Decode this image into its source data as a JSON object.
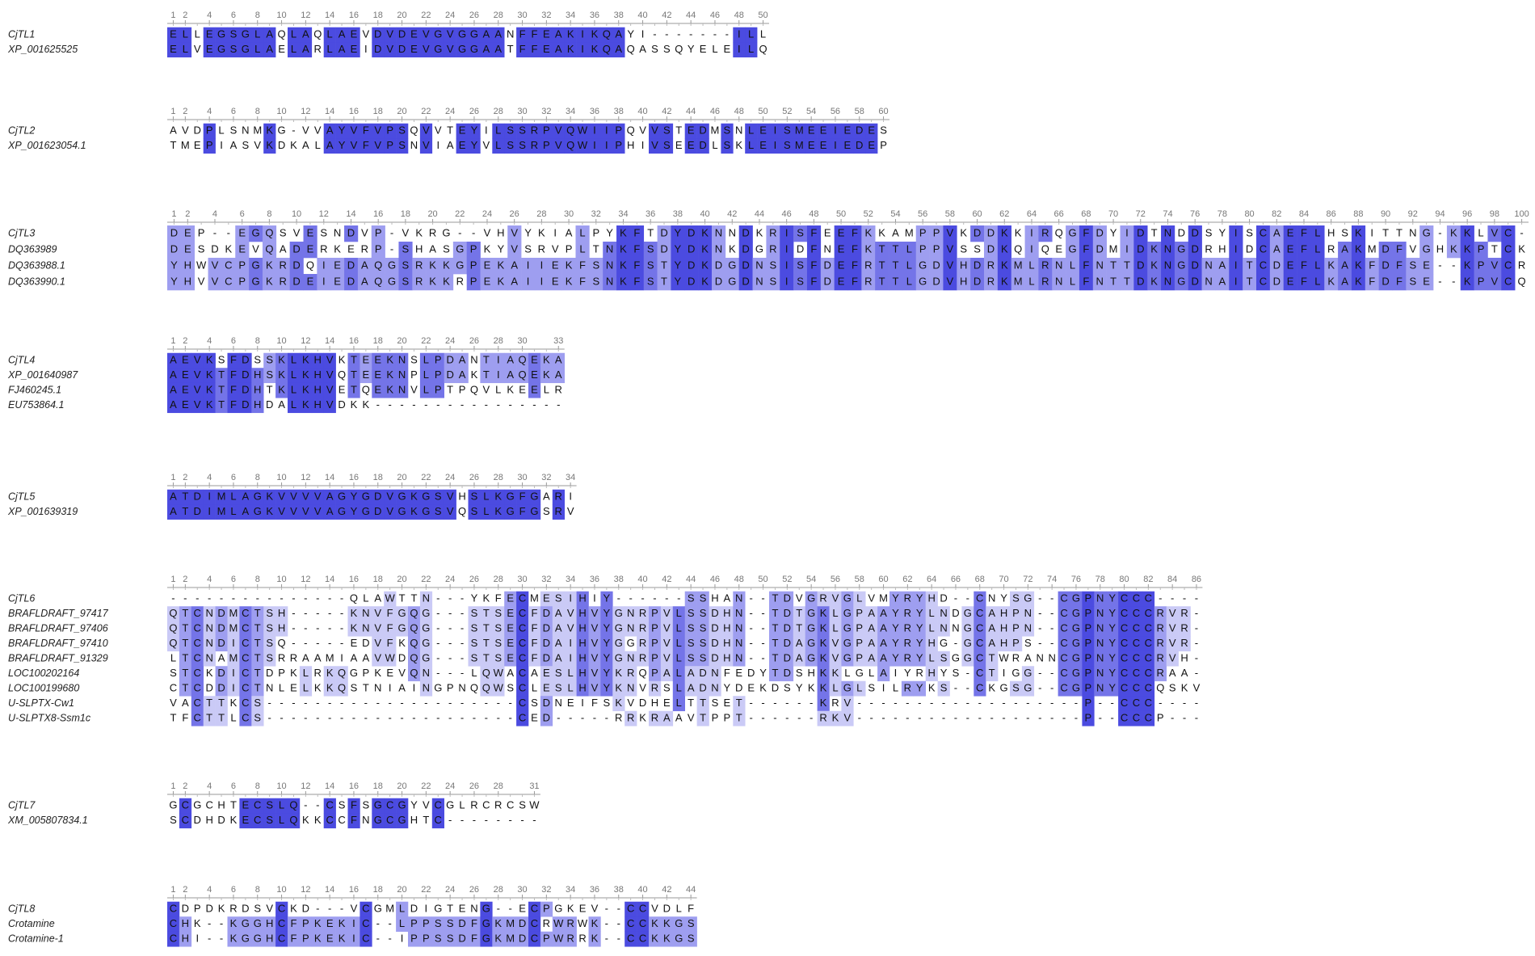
{
  "blocks": [
    {
      "ruler": [
        1,
        2,
        4,
        6,
        8,
        10,
        12,
        14,
        16,
        18,
        20,
        22,
        24,
        26,
        28,
        30,
        32,
        34,
        36,
        38,
        40,
        42,
        44,
        46,
        48,
        50
      ],
      "rows": [
        {
          "name": "CjTL1",
          "sequence": "ELLEGSGLAQLAQLAEVDVDEVGVGGAANFFEAKIKQAYI-------ILL"
        },
        {
          "name": "XP_001625525",
          "sequence": "ELVEGSGLAELARLAEIDVDEVGVGGAATFFEAKIKQAQASSQYELEILQ"
        }
      ]
    },
    {
      "ruler": [
        1,
        2,
        4,
        6,
        8,
        10,
        12,
        14,
        16,
        18,
        20,
        22,
        24,
        26,
        28,
        30,
        32,
        34,
        36,
        38,
        40,
        42,
        44,
        46,
        48,
        50,
        52,
        54,
        56,
        58,
        60
      ],
      "rows": [
        {
          "name": "CjTL2",
          "sequence": "AVDPLSNMKG-VVAYVFVPSQVVTEYILSSRPVQWIIPQVVSTEDMSNLEISMEEIEDES"
        },
        {
          "name": "XP_001623054.1",
          "sequence": "TMEPIASVKDKALAYVFVPSNVIAEYVLSSRPVQWIIPHIVSEEDLSKLEISMEEIEDEP"
        }
      ]
    },
    {
      "ruler": [
        1,
        2,
        4,
        6,
        8,
        10,
        12,
        14,
        16,
        18,
        20,
        22,
        24,
        26,
        28,
        30,
        32,
        34,
        36,
        38,
        40,
        42,
        44,
        46,
        48,
        50,
        52,
        54,
        56,
        58,
        60,
        62,
        64,
        66,
        68,
        70,
        72,
        74,
        76,
        78,
        80,
        82,
        84,
        86,
        88,
        90,
        92,
        94,
        96,
        98,
        100
      ],
      "rows": [
        {
          "name": "CjTL3",
          "sequence": "DEP--EGQSVESNDVP-VKRG--VHVYKIALPYKFTDYDKNNDKRISFEEFKKAMPPVKDDKKIRQGFDYIDTNDDSYISCAEFLHSKITTNG-KKLVC-"
        },
        {
          "name": "DQ363989",
          "sequence": "DESDKEVQADERKERP-SHASGPKYVSRVPLTNKFSDYDKNKDGRIDFNEFKTTLPPVSSDKQIQEGFDMIDKNGDRHIDCAEFLRAKMDFVGHKKPTCK"
        },
        {
          "name": "DQ363988.1",
          "sequence": "YHWVCPGKRDQIEDAQGSRKKGPEKAIIEKFSNKFSTYDKDGDNSISFDEFRTTLGDVHDRKMLRNLFNTTDKNGDNAITCDEFLKAKFDFSE--KPVCR"
        },
        {
          "name": "DQ363990.1",
          "sequence": "YHVVCPGKRDEIEDAQGSRKKRPEKAIIEKFSNKFSTYDKDGDNSISFDEFRTTLGDVHDRKMLRNLFNTTDKNGDNAITCDEFLKAKFDFSE--KPVCQ"
        }
      ]
    },
    {
      "ruler": [
        1,
        2,
        4,
        6,
        8,
        10,
        12,
        14,
        16,
        18,
        20,
        22,
        24,
        26,
        28,
        30,
        33
      ],
      "rows": [
        {
          "name": "CjTL4",
          "sequence": "AEVKSFDSSKLKHVKTEEKNSLPDANTIAQEKA"
        },
        {
          "name": "XP_001640987",
          "sequence": "AEVKTFDHSKLKHVQTEEKNPLPDAKTIAQEKA"
        },
        {
          "name": "FJ460245.1",
          "sequence": "AEVKTFDHTKLKHVETQEKNVLPTPQVLKEELR"
        },
        {
          "name": "EU753864.1",
          "sequence": "AEVKTFDHDALKHVDKK----------------"
        }
      ]
    },
    {
      "ruler": [
        1,
        2,
        4,
        6,
        8,
        10,
        12,
        14,
        16,
        18,
        20,
        22,
        24,
        26,
        28,
        30,
        32,
        34
      ],
      "rows": [
        {
          "name": "CjTL5",
          "sequence": "ATDIMLAGKVVVVAGYGDVGKGSVHSLKGFGARI"
        },
        {
          "name": "XP_001639319",
          "sequence": "ATDIMLAGKVVVVAGYGDVGKGSVQSLKGFGSRV"
        }
      ]
    },
    {
      "ruler": [
        1,
        2,
        4,
        6,
        8,
        10,
        12,
        14,
        16,
        18,
        20,
        22,
        24,
        26,
        28,
        30,
        32,
        34,
        36,
        38,
        40,
        42,
        44,
        46,
        48,
        50,
        52,
        54,
        56,
        58,
        60,
        62,
        64,
        66,
        68,
        70,
        72,
        74,
        76,
        78,
        80,
        82,
        84,
        86
      ],
      "rows": [
        {
          "name": "CjTL6",
          "sequence": "---------------QLAWTTN---YKFECMESIHIY------SSHAN--TDVGRVGLVMYRYHD--CNYSG--CGPNYCCC----"
        },
        {
          "name": "BRAFLDRAFT_97417",
          "sequence": "QTCNDMCTSH-----KNVFGQG---STSECFDAVHVYGNRPVLSSDHN--TDTGKLGPAAYRYLNDGCAHPN--CGPNYCCCRVR-"
        },
        {
          "name": "BRAFLDRAFT_97406",
          "sequence": "QTCNDMCTSH-----KNVFGQG---STSECFDAVHVYGNRPVLSSDHN--TDTGKLGPAAYRYLNNGCAHPN--CGPNYCCCRVR-"
        },
        {
          "name": "BRAFLDRAFT_97410",
          "sequence": "QTCNDICTSQ-----EDVFKQG---STSECFDAIHVYGGRPVLSSDHN--TDAGKVGPAAYRYHG-GCAHPS--CGPNYCCCRVR-"
        },
        {
          "name": "BRAFLDRAFT_91329",
          "sequence": "LTCNAMCTSRRAAMIAAVWDQG---STSECFDAIHVYGNRPVLSSDHN--TDAGKVGPAAYRYLSGGCTWRANNCGPNYCCCRVH-"
        },
        {
          "name": "LOC100202164",
          "sequence": "STCKDICTDPKLRKQGPKEVQN---LQWACAESLHVYKRQPALADNFEDYTDSHKKLGLAIYRHYS-CTIGG--CGPNYCCCRAA-"
        },
        {
          "name": "LOC100199680",
          "sequence": "CTCDDICTNLELKKQSTNIAINGPNQQWSCLESLHVYKNVRSLADNYDEKDSYKKLGLSILRYKS--CKGSG--CGPNYCCCQSKV"
        },
        {
          "name": "U-SLPTX-Cw1",
          "sequence": "VACTTKCS---------------------CSDNEIFSKVDHELTTSET------KRV-------------------P--CCC----"
        },
        {
          "name": "U-SLPTX8-Ssm1c",
          "sequence": "TFCTTLCS---------------------CED-----RRKRAAVTPPT------RKV-------------------P--CCCP---"
        }
      ]
    },
    {
      "ruler": [
        1,
        2,
        4,
        6,
        8,
        10,
        12,
        14,
        16,
        18,
        20,
        22,
        24,
        26,
        28,
        31
      ],
      "rows": [
        {
          "name": "CjTL7",
          "sequence": "GCGCHTECSLQ--CSFSGCGYVCGLRCRCSW"
        },
        {
          "name": "XM_005807834.1",
          "sequence": "SCDHDKECSLQKKCCFNGCGHTC--------"
        }
      ]
    },
    {
      "ruler": [
        1,
        2,
        4,
        6,
        8,
        10,
        12,
        14,
        16,
        18,
        20,
        22,
        24,
        26,
        28,
        30,
        32,
        34,
        36,
        38,
        40,
        42,
        44
      ],
      "rows": [
        {
          "name": "CjTL8",
          "sequence": "CDPDKRDSVCKD---VCGMLDIGTENG--ECPGKEV--CCVDLF"
        },
        {
          "name": "Crotamine",
          "sequence": "CHK--KGGHCFPKEKIC--LPPSSDFGKMDCRWRWK--CCKKGS"
        },
        {
          "name": "Crotamine-1",
          "sequence": "CHI--KGGHCFPKEKIC--IPPSSDFGKMDCPWRRK--CCKKGS"
        }
      ]
    }
  ]
}
